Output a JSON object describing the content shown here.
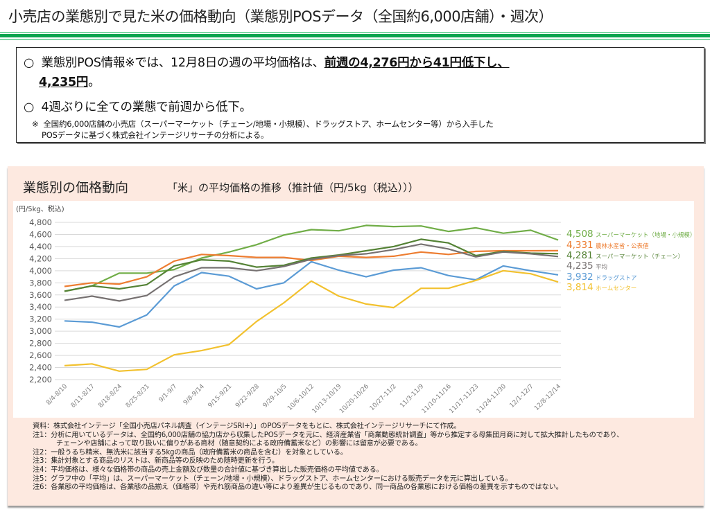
{
  "header": {
    "title": "小売店の業態別で見た米の価格動向（業態別POSデータ（全国約6,000店舗）・週次）"
  },
  "summary": {
    "bullet": "○",
    "line1_prefix": "業態別POS情報※では、12月8日の週の平均価格は、",
    "line1_emphasis": "前週の4,276円から41円低下し、",
    "line2_emphasis": "4,235円",
    "line2_suffix": "。",
    "line3": "4週ぶりに全ての業態で前週から低下。",
    "note_mark": "※",
    "note_line1": "全国約6,000店舗の小売店（スーパーマーケット（チェーン/地場・小規模）、ドラッグストア、ホームセンター等）から入手した",
    "note_line2": "POSデータに基づく株式会社インテージリサーチの分析による。"
  },
  "panel": {
    "title": "業態別の価格動向",
    "subtitle": "「米」の平均価格の推移（推計値（円/5kg（税込）））"
  },
  "chart_data": {
    "type": "line",
    "title": "業態別の価格動向",
    "subtitle": "「米」の平均価格の推移（推計値（円/5kg（税込）））",
    "xlabel": "",
    "ylabel": "(円/5kg、税込)",
    "ylim": [
      2200,
      4800
    ],
    "ytick_step": 200,
    "yticks": [
      "2,200",
      "2,400",
      "2,600",
      "2,800",
      "3,000",
      "3,200",
      "3,400",
      "3,600",
      "3,800",
      "4,000",
      "4,200",
      "4,400",
      "4,600",
      "4,800"
    ],
    "grid": true,
    "legend": "right (end-of-line labels)",
    "categories": [
      "8/4-8/10",
      "8/11-8/17",
      "8/18-8/24",
      "8/25-8/31",
      "9/1-9/7",
      "9/8-9/14",
      "9/15-9/21",
      "9/22-9/28",
      "9/29-10/5",
      "10/6-10/12",
      "10/13-10/19",
      "10/20-10/26",
      "10/27-11/2",
      "11/3-11/9",
      "11/10-11/16",
      "11/17-11/23",
      "11/24-11/30",
      "12/1-12/7",
      "12/8-12/14"
    ],
    "series": [
      {
        "name": "スーパーマーケット（地場・小規模）",
        "color": "#70ad47",
        "end_label": "4,508",
        "values": [
          3660,
          3750,
          3960,
          3960,
          4020,
          4210,
          4310,
          4430,
          4590,
          4680,
          4660,
          4750,
          4730,
          4740,
          4650,
          4710,
          4620,
          4670,
          4508
        ]
      },
      {
        "name": "農林水産省・公表値",
        "color": "#ed7d31",
        "end_label": "4,331",
        "values": [
          3740,
          3800,
          3780,
          3900,
          4160,
          4270,
          4250,
          4220,
          4220,
          4170,
          4240,
          4220,
          4240,
          4310,
          4270,
          4320,
          4330,
          4330,
          4331
        ]
      },
      {
        "name": "スーパーマーケット（チェーン）",
        "color": "#548235",
        "end_label": "4,281",
        "values": [
          3660,
          3750,
          3700,
          3770,
          4080,
          4180,
          4160,
          4060,
          4090,
          4210,
          4260,
          4330,
          4400,
          4520,
          4460,
          4250,
          4320,
          4290,
          4281
        ]
      },
      {
        "name": "平均",
        "color": "#767171",
        "end_label": "4,235",
        "values": [
          3510,
          3580,
          3500,
          3590,
          3900,
          4050,
          4050,
          4000,
          4070,
          4190,
          4250,
          4280,
          4350,
          4440,
          4360,
          4230,
          4310,
          4280,
          4235
        ]
      },
      {
        "name": "ドラッグストア",
        "color": "#5b9bd5",
        "end_label": "3,932",
        "values": [
          3170,
          3150,
          3070,
          3270,
          3750,
          3970,
          3910,
          3700,
          3800,
          4150,
          4010,
          3900,
          4010,
          4050,
          3920,
          3850,
          4080,
          4000,
          3932
        ]
      },
      {
        "name": "ホームセンター",
        "color": "#f2c12e",
        "end_label": "3,814",
        "values": [
          2430,
          2460,
          2340,
          2370,
          2610,
          2680,
          2780,
          3160,
          3470,
          3830,
          3580,
          3450,
          3390,
          3710,
          3710,
          3840,
          4000,
          3950,
          3814
        ]
      }
    ]
  },
  "notes": [
    "資料：株式会社インテージ「全国小売店パネル調査（インテージSRI+）」のPOSデータをもとに、株式会社インテージリサーチにて作成。",
    "注1：分析に用いているデータは、全国約6,000店舗の協力店から収集したPOSデータを元に、経済産業省「商業動態統計調査」等から推定する母集団月商に対して拡大推計したものであり、",
    "チェーンや店舗によって取り扱いに偏りがある商材（随意契約による政府備蓄米など）の影響には留意が必要である。",
    "注2：一般うるち精米、無洗米に該当する5kgの商品（政府備蓄米の商品を含む）を対象としている。",
    "注3：集計対象とする商品のリストは、新商品等の反映のため随時更新を行う。",
    "注4：平均価格は、様々な価格帯の商品の売上金額及び数量の合計値に基づき算出した販売価格の平均値である。",
    "注5：グラフ中の「平均」は、スーパーマーケット（チェーン/地場・小規模）、ドラッグストア、ホームセンターにおける販売データを元に算出している。",
    "注6：各業態の平均価格は、各業態の品揃え（価格帯）や売れ筋商品の違い等により差異が生じるものであり、同一商品の各業態における価格の差異を示すものではない。"
  ]
}
